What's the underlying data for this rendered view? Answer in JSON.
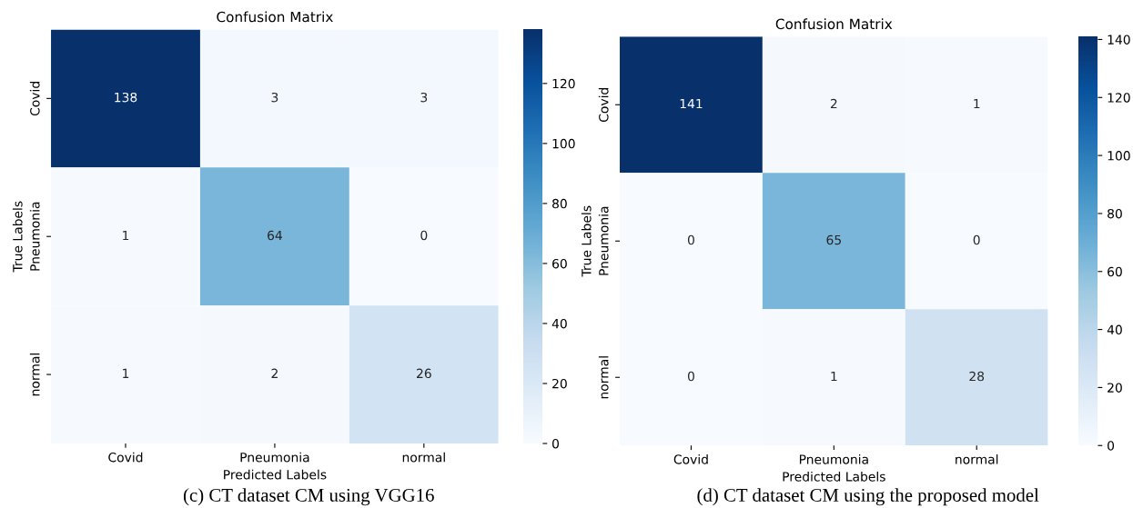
{
  "chart_data": [
    {
      "type": "heatmap",
      "title": "Confusion Matrix",
      "xlabel": "Predicted Labels",
      "ylabel": "True Labels",
      "categories": [
        "Covid",
        "Pneumonia",
        "normal"
      ],
      "y_categories": [
        "Covid",
        "Pneumonia",
        "normal"
      ],
      "cells": [
        [
          138,
          3,
          3
        ],
        [
          1,
          64,
          0
        ],
        [
          1,
          2,
          26
        ]
      ],
      "data_labels": true,
      "clim": [
        0,
        138
      ],
      "cticks": [
        0,
        20,
        40,
        60,
        80,
        100,
        120
      ],
      "annotations": [
        "(c) CT dataset CM using VGG16"
      ]
    },
    {
      "type": "heatmap",
      "title": "Confusion Matrix",
      "xlabel": "Predicted Labels",
      "ylabel": "True Labels",
      "categories": [
        "Covid",
        "Pneumonia",
        "normal"
      ],
      "y_categories": [
        "Covid",
        "Pneumonia",
        "normal"
      ],
      "cells": [
        [
          141,
          2,
          1
        ],
        [
          0,
          65,
          0
        ],
        [
          0,
          1,
          28
        ]
      ],
      "data_labels": true,
      "clim": [
        0,
        141
      ],
      "cticks": [
        0,
        20,
        40,
        60,
        80,
        100,
        120,
        140
      ],
      "annotations": [
        "(d) CT dataset CM using the proposed model"
      ]
    }
  ]
}
